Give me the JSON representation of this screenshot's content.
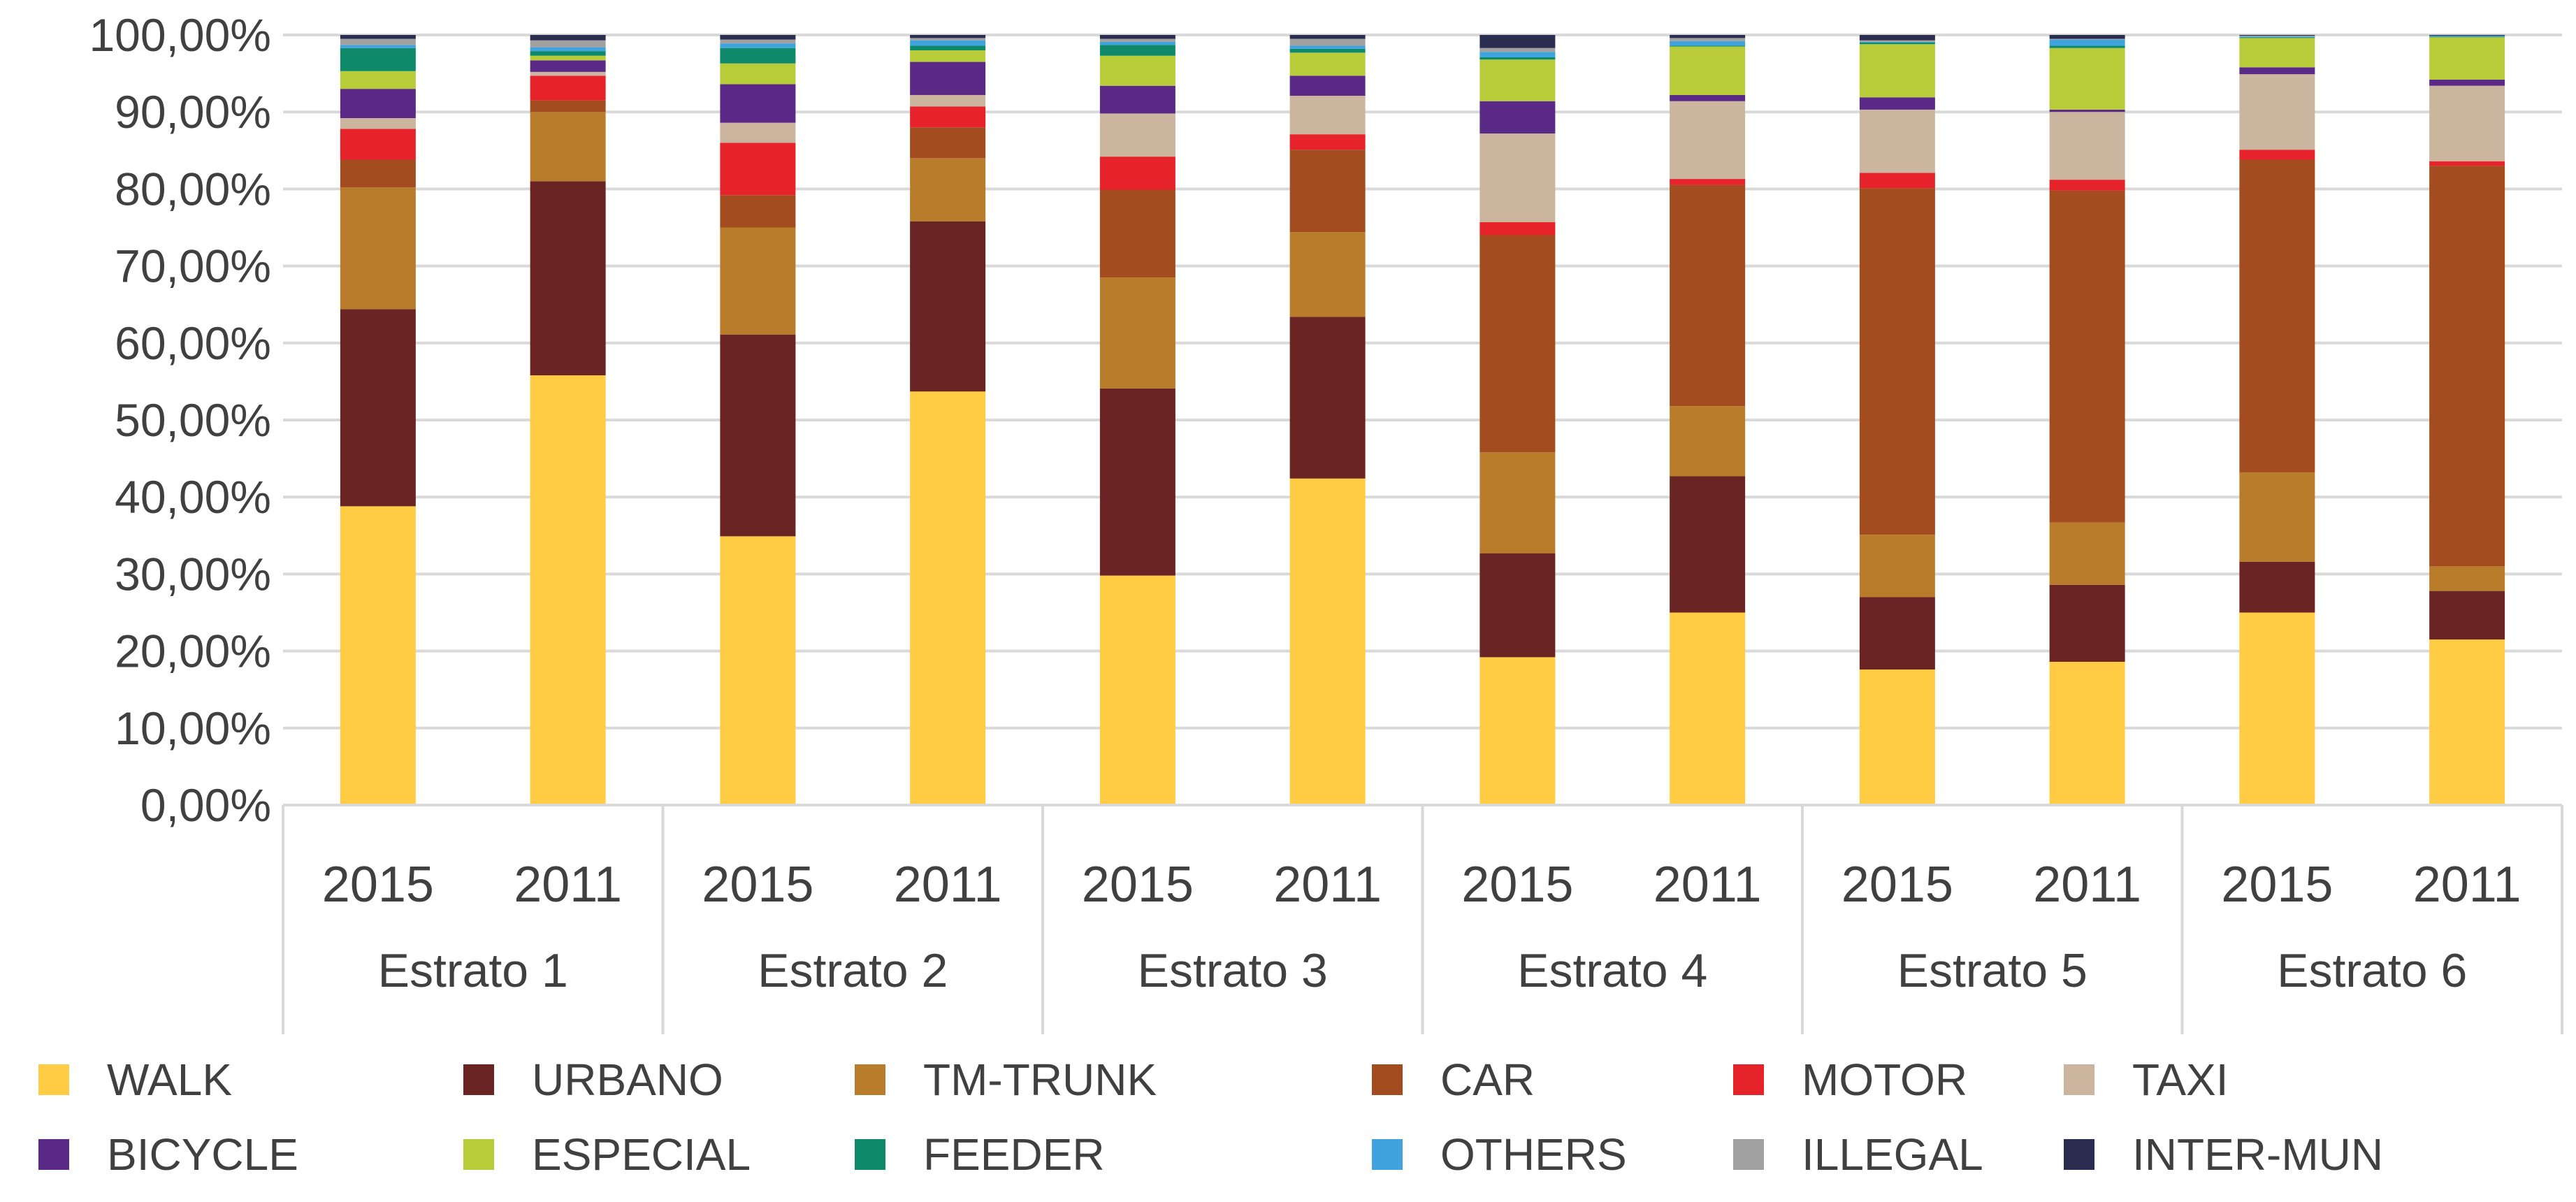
{
  "chart_data": {
    "type": "bar",
    "stacked": true,
    "title": "",
    "xlabel": "",
    "ylabel": "",
    "ylim": [
      0,
      100
    ],
    "y_ticks": [
      "0,00%",
      "10,00%",
      "20,00%",
      "30,00%",
      "40,00%",
      "50,00%",
      "60,00%",
      "70,00%",
      "80,00%",
      "90,00%",
      "100,00%"
    ],
    "grid": true,
    "legend_position": "bottom",
    "groups": [
      {
        "label": "Estrato 1",
        "years": [
          "2015",
          "2011"
        ]
      },
      {
        "label": "Estrato 2",
        "years": [
          "2015",
          "2011"
        ]
      },
      {
        "label": "Estrato 3",
        "years": [
          "2015",
          "2011"
        ]
      },
      {
        "label": "Estrato 4",
        "years": [
          "2015",
          "2011"
        ]
      },
      {
        "label": "Estrato 5",
        "years": [
          "2015",
          "2011"
        ]
      },
      {
        "label": "Estrato 6",
        "years": [
          "2015",
          "2011"
        ]
      }
    ],
    "series": [
      {
        "name": "WALK",
        "color": "#FFCC44",
        "values": [
          38.8,
          55.8,
          34.9,
          53.7,
          29.8,
          42.4,
          19.2,
          25.0,
          17.6,
          18.6,
          25.0,
          21.5
        ]
      },
      {
        "name": "URBANO",
        "color": "#6B2424",
        "values": [
          25.6,
          25.2,
          26.2,
          22.1,
          24.3,
          21.0,
          13.5,
          17.7,
          9.4,
          10.0,
          6.6,
          6.3
        ]
      },
      {
        "name": "TM-TRUNK",
        "color": "#B87C2A",
        "values": [
          15.8,
          9.0,
          13.9,
          8.2,
          14.4,
          11.0,
          13.1,
          9.1,
          8.1,
          8.1,
          11.6,
          3.2
        ]
      },
      {
        "name": "CAR",
        "color": "#A34C20",
        "values": [
          3.6,
          1.5,
          4.2,
          4.0,
          11.4,
          10.7,
          28.2,
          28.7,
          45.0,
          43.1,
          40.6,
          52.0
        ]
      },
      {
        "name": "MOTOR",
        "color": "#E6222A",
        "values": [
          4.0,
          3.2,
          6.8,
          2.7,
          4.3,
          2.0,
          1.7,
          0.8,
          2.0,
          1.4,
          1.3,
          0.6
        ]
      },
      {
        "name": "TAXI",
        "color": "#CBB59F",
        "values": [
          1.4,
          0.5,
          2.6,
          1.5,
          5.6,
          5.0,
          11.5,
          10.1,
          8.2,
          8.8,
          9.8,
          9.8
        ]
      },
      {
        "name": "BICYCLE",
        "color": "#5A2A86",
        "values": [
          3.8,
          1.5,
          5.0,
          4.3,
          3.6,
          2.6,
          4.2,
          0.8,
          1.6,
          0.3,
          0.9,
          0.8
        ]
      },
      {
        "name": "ESPECIAL",
        "color": "#B8CC3A",
        "values": [
          2.3,
          0.6,
          2.7,
          1.5,
          3.9,
          3.0,
          5.4,
          6.3,
          6.9,
          8.0,
          3.8,
          5.5
        ]
      },
      {
        "name": "FEEDER",
        "color": "#0E8A6A",
        "values": [
          3.0,
          0.6,
          2.0,
          0.6,
          1.4,
          0.5,
          0.3,
          0.1,
          0.2,
          0.3,
          0.1,
          0.1
        ]
      },
      {
        "name": "OTHERS",
        "color": "#3FA3DD",
        "values": [
          0.4,
          0.5,
          0.6,
          0.7,
          0.4,
          0.4,
          0.7,
          0.6,
          0.1,
          0.8,
          0.1,
          0.1
        ]
      },
      {
        "name": "ILLEGAL",
        "color": "#A0A0A0",
        "values": [
          0.8,
          0.9,
          0.5,
          0.3,
          0.4,
          0.9,
          0.5,
          0.4,
          0.2,
          0.1,
          0.1,
          0.0
        ]
      },
      {
        "name": "INTER-MUN",
        "color": "#2B2D50",
        "values": [
          0.5,
          0.7,
          0.6,
          0.4,
          0.5,
          0.5,
          1.7,
          0.4,
          0.7,
          0.5,
          0.1,
          0.1
        ]
      }
    ]
  }
}
